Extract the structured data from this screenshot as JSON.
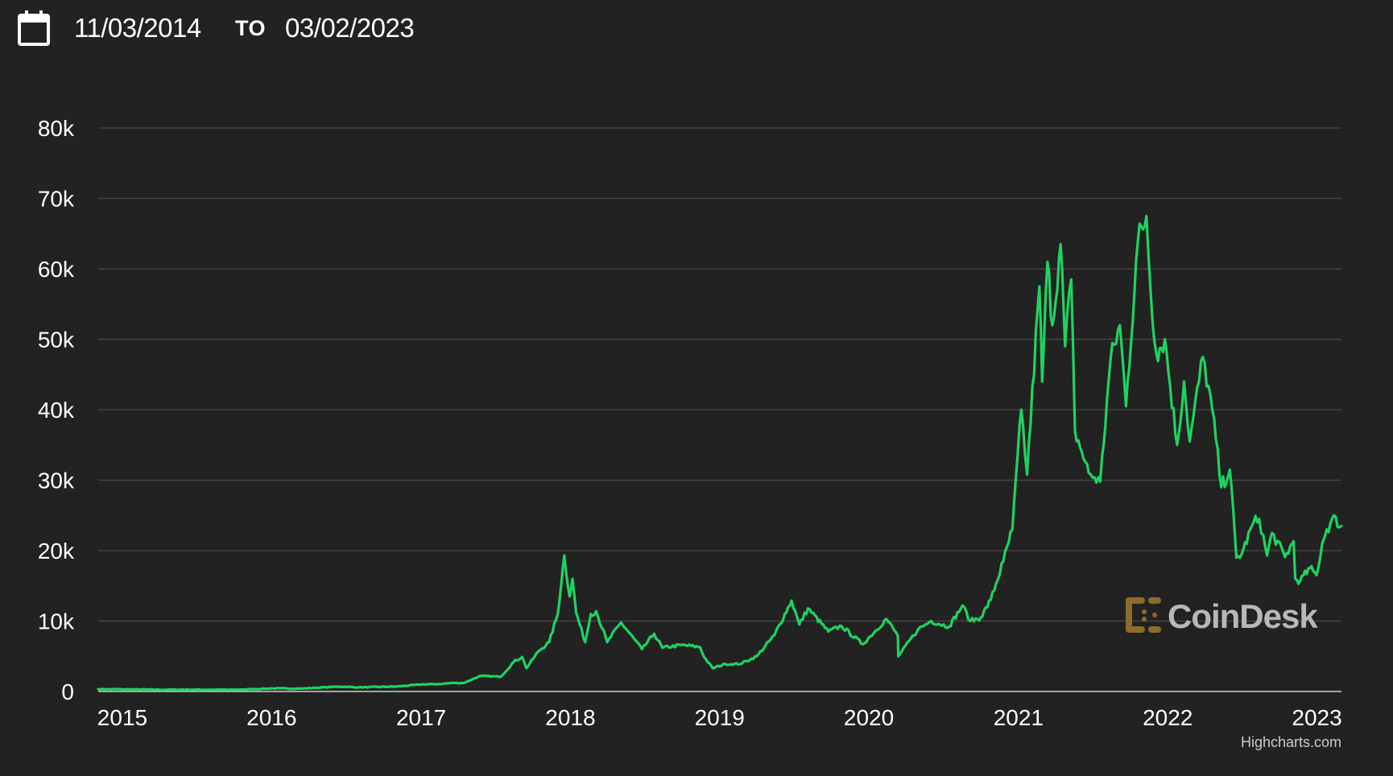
{
  "header": {
    "from_date": "11/03/2014",
    "to_label": "TO",
    "to_date": "03/02/2023",
    "icon": "calendar-icon"
  },
  "colors": {
    "background": "#222222",
    "line": "#1fd361",
    "line_early": "#e0473a",
    "grid": "#4a4a4a",
    "text": "#ffffff",
    "watermark_mark": "#8a6d2a",
    "watermark_text": "#b8b8b8"
  },
  "watermark": {
    "text": "CoinDesk",
    "icon": "coindesk-logo-icon"
  },
  "credit": "Highcharts.com",
  "chart_data": {
    "type": "line",
    "title": "",
    "xlabel": "",
    "ylabel": "",
    "ylim": [
      0,
      80000
    ],
    "xlim": [
      "2014-11-03",
      "2023-03-02"
    ],
    "grid": true,
    "legend": "none",
    "y_ticks": [
      {
        "value": 0,
        "label": "0"
      },
      {
        "value": 10000,
        "label": "10k"
      },
      {
        "value": 20000,
        "label": "20k"
      },
      {
        "value": 30000,
        "label": "30k"
      },
      {
        "value": 40000,
        "label": "40k"
      },
      {
        "value": 50000,
        "label": "50k"
      },
      {
        "value": 60000,
        "label": "60k"
      },
      {
        "value": 70000,
        "label": "70k"
      },
      {
        "value": 80000,
        "label": "80k"
      }
    ],
    "x_ticks": [
      {
        "value": "2015-01-01",
        "label": "2015"
      },
      {
        "value": "2016-01-01",
        "label": "2016"
      },
      {
        "value": "2017-01-01",
        "label": "2017"
      },
      {
        "value": "2018-01-01",
        "label": "2018"
      },
      {
        "value": "2019-01-01",
        "label": "2019"
      },
      {
        "value": "2020-01-01",
        "label": "2020"
      },
      {
        "value": "2021-01-01",
        "label": "2021"
      },
      {
        "value": "2022-01-01",
        "label": "2022"
      },
      {
        "value": "2023-01-01",
        "label": "2023"
      }
    ],
    "series": [
      {
        "x": [
          "2014-11-03",
          "2015-01-15",
          "2015-04-01",
          "2015-07-01",
          "2015-10-01",
          "2016-01-01",
          "2016-03-15",
          "2016-06-15",
          "2016-08-01",
          "2016-11-01",
          "2017-01-01",
          "2017-02-15",
          "2017-03-15",
          "2017-04-15",
          "2017-05-25",
          "2017-07-15",
          "2017-08-15",
          "2017-09-05",
          "2017-09-15",
          "2017-10-15",
          "2017-11-10",
          "2017-12-01",
          "2017-12-17",
          "2017-12-30",
          "2018-01-06",
          "2018-01-15",
          "2018-02-06",
          "2018-02-20",
          "2018-03-05",
          "2018-04-01",
          "2018-05-05",
          "2018-06-25",
          "2018-07-25",
          "2018-08-14",
          "2018-10-01",
          "2018-11-14",
          "2018-11-25",
          "2018-12-15",
          "2019-01-15",
          "2019-02-20",
          "2019-04-02",
          "2019-05-15",
          "2019-06-26",
          "2019-07-15",
          "2019-08-05",
          "2019-09-24",
          "2019-10-26",
          "2019-12-17",
          "2020-02-13",
          "2020-03-12",
          "2020-03-13",
          "2020-04-30",
          "2020-06-01",
          "2020-07-15",
          "2020-08-17",
          "2020-09-05",
          "2020-10-01",
          "2020-10-25",
          "2020-11-25",
          "2020-12-17",
          "2021-01-08",
          "2021-01-22",
          "2021-02-21",
          "2021-02-28",
          "2021-03-13",
          "2021-03-25",
          "2021-04-14",
          "2021-04-25",
          "2021-05-10",
          "2021-05-19",
          "2021-06-05",
          "2021-06-22",
          "2021-07-20",
          "2021-08-14",
          "2021-09-06",
          "2021-09-21",
          "2021-10-20",
          "2021-11-10",
          "2021-11-20",
          "2021-12-04",
          "2021-12-25",
          "2022-01-24",
          "2022-02-10",
          "2022-02-24",
          "2022-03-28",
          "2022-04-20",
          "2022-05-12",
          "2022-06-02",
          "2022-06-18",
          "2022-07-01",
          "2022-07-30",
          "2022-08-13",
          "2022-09-01",
          "2022-09-13",
          "2022-10-15",
          "2022-11-05",
          "2022-11-09",
          "2022-11-21",
          "2022-12-15",
          "2022-12-31",
          "2023-01-14",
          "2023-01-25",
          "2023-02-16",
          "2023-02-25",
          "2023-03-02"
        ],
        "y": [
          330,
          300,
          250,
          260,
          240,
          430,
          410,
          700,
          580,
          700,
          1000,
          1050,
          1200,
          1200,
          2200,
          2100,
          4200,
          4900,
          3300,
          5700,
          7000,
          11000,
          19300,
          13500,
          16000,
          11200,
          7000,
          11000,
          11400,
          7000,
          9800,
          6000,
          8200,
          6200,
          6600,
          6300,
          4800,
          3300,
          3900,
          3900,
          5000,
          8000,
          12900,
          9500,
          11800,
          8500,
          9300,
          6700,
          10300,
          7900,
          5000,
          8800,
          10000,
          9200,
          12200,
          10000,
          10500,
          13000,
          18500,
          23000,
          40000,
          30800,
          57500,
          44000,
          61000,
          52000,
          63500,
          49000,
          58500,
          37000,
          34000,
          31000,
          29800,
          47000,
          52000,
          40500,
          64000,
          67500,
          57000,
          48000,
          50000,
          35000,
          44000,
          35500,
          47500,
          40000,
          29000,
          31500,
          19000,
          19500,
          24000,
          24500,
          19300,
          22500,
          19100,
          21300,
          16000,
          15700,
          17500,
          16500,
          21000,
          23000,
          24800,
          23300,
          23500
        ]
      }
    ]
  }
}
